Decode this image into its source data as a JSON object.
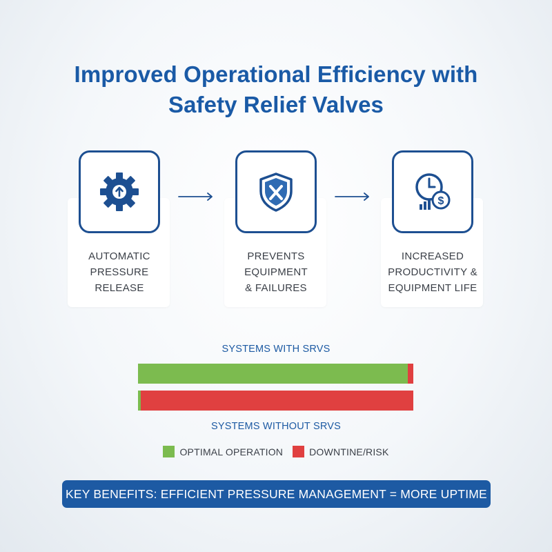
{
  "header": {
    "title_line1": "Improved Operational Efficiency with",
    "title_line2": "Safety Relief Valves"
  },
  "steps": [
    {
      "icon": "gear-up-arrow-icon",
      "label_lines": [
        "AUTOMATIC",
        "PRESSURE",
        "RELEASE"
      ]
    },
    {
      "icon": "shield-icon",
      "label_lines": [
        "PREVENTS",
        "EQUIPMENT",
        "& FAILURES"
      ]
    },
    {
      "icon": "clock-dollar-icon",
      "label_lines": [
        "INCREASED",
        "PRODUCTIVITY &",
        "EQUIPMENT LIFE"
      ]
    }
  ],
  "chart_data": {
    "type": "bar",
    "orientation": "horizontal",
    "stacked": true,
    "categories": [
      "SYSTEMS WITH SRVS",
      "SYSTEMS WITHOUT SRVS"
    ],
    "series": [
      {
        "name": "OPTIMAL OPERATION",
        "values": [
          98,
          1
        ],
        "color": "#7cbb4f"
      },
      {
        "name": "DOWNTINE/RISK",
        "values": [
          2,
          99
        ],
        "color": "#e04040"
      }
    ]
  },
  "colors": {
    "brand": "#1a5aa6",
    "icon_stroke": "#1d4f91",
    "optimal": "#7cbb4f",
    "risk": "#e04040"
  },
  "banner": {
    "text": "KEY BENEFITS: EFFICIENT PRESSURE MANAGEMENT = MORE UPTIME"
  }
}
